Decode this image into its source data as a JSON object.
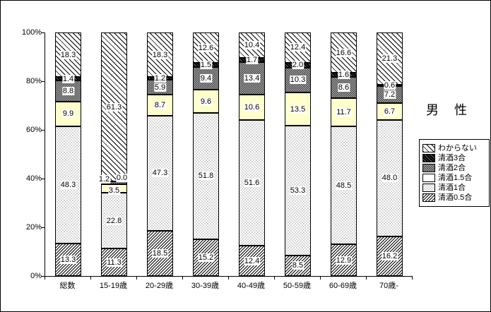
{
  "chart_data": {
    "type": "bar",
    "subtype": "stacked-100-percent",
    "title": "男　性",
    "categories": [
      "総数",
      "15-19歳",
      "20-29歳",
      "30-39歳",
      "40-49歳",
      "50-59歳",
      "60-69歳",
      "70歳-"
    ],
    "series": [
      {
        "name": "清酒0.5合",
        "pattern": "fine-diagonal-hatch",
        "values": [
          13.3,
          11.3,
          18.5,
          15.2,
          12.4,
          8.5,
          12.9,
          16.2
        ]
      },
      {
        "name": "清酒1合",
        "pattern": "light-stipple",
        "values": [
          48.3,
          22.8,
          47.3,
          51.8,
          51.6,
          53.3,
          48.5,
          48.0
        ]
      },
      {
        "name": "清酒1.5合",
        "pattern": "solid",
        "color": "#ffffcc",
        "values": [
          9.9,
          3.5,
          8.7,
          9.6,
          10.6,
          13.5,
          11.7,
          6.7
        ]
      },
      {
        "name": "清酒2合",
        "pattern": "dense-stipple",
        "values": [
          8.8,
          1.2,
          5.9,
          9.4,
          13.4,
          10.3,
          8.6,
          7.2
        ]
      },
      {
        "name": "清酒3合",
        "pattern": "dark-diagonal-hatch",
        "values": [
          1.4,
          0.0,
          1.2,
          1.5,
          1.7,
          2.0,
          1.6,
          0.6
        ]
      },
      {
        "name": "わからない",
        "pattern": "wide-diagonal-hatch",
        "values": [
          18.3,
          61.3,
          18.3,
          12.6,
          10.4,
          12.4,
          16.6,
          21.3
        ]
      }
    ],
    "legend_order_top_to_bottom": [
      "わからない",
      "清酒3合",
      "清酒2合",
      "清酒1.5合",
      "清酒1合",
      "清酒0.5合"
    ],
    "ylabels": [
      "0%",
      "20%",
      "40%",
      "60%",
      "80%",
      "100%"
    ],
    "ylim": [
      0,
      100
    ],
    "legend_position": "right",
    "grid": false
  }
}
